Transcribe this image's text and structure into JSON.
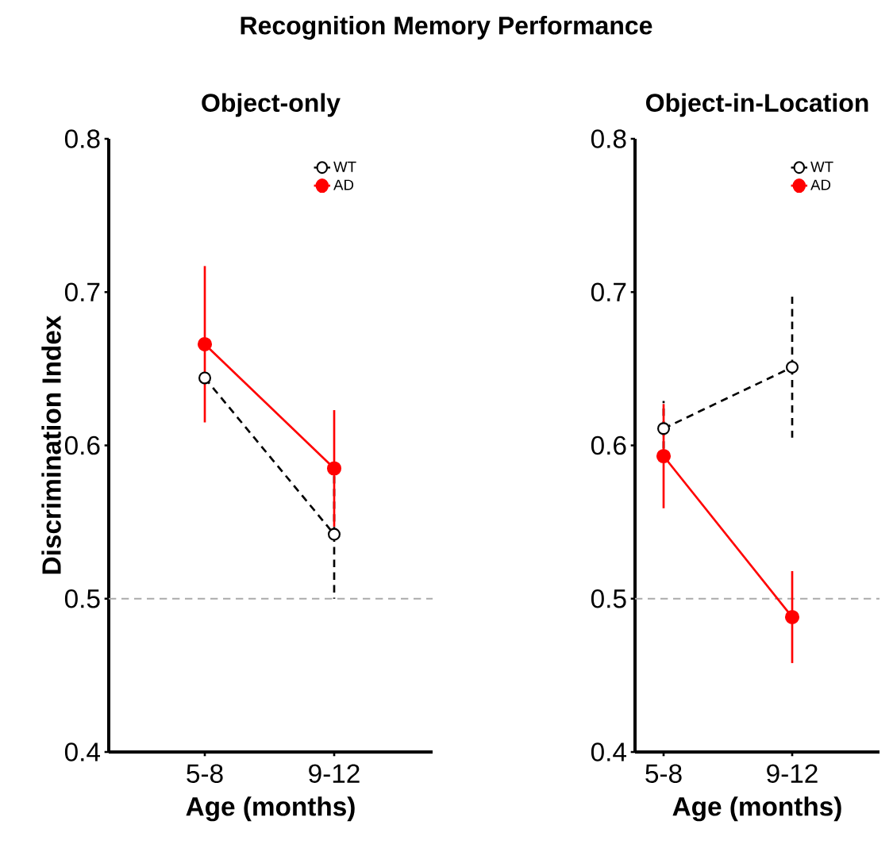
{
  "chart_data": [
    {
      "type": "line",
      "title": "Object-only",
      "xlabel": "Age (months)",
      "ylabel": "Discrimination Index",
      "annotations": [
        "Recognition Memory Performance"
      ],
      "categories": [
        "5-8",
        "9-12"
      ],
      "ylim": [
        0.4,
        0.8
      ],
      "yticks": [
        0.4,
        0.5,
        0.6,
        0.7,
        0.8
      ],
      "grid": false,
      "legend": "top right",
      "marker": "circle",
      "ref_lines": [
        {
          "axis": "y",
          "value": 0.5,
          "color": "#aaaaaa",
          "line_style": "dashed"
        }
      ],
      "series": [
        {
          "name": "WT",
          "color": "#000000",
          "line_style": "dashed",
          "values": [
            0.644,
            0.542
          ],
          "errors": [
            null,
            0.042
          ]
        },
        {
          "name": "AD",
          "color": "#ff0000",
          "line_style": "solid",
          "values": [
            0.666,
            0.585
          ],
          "errors": [
            0.051,
            0.038
          ]
        }
      ]
    },
    {
      "type": "line",
      "title": "Object-in-Location",
      "xlabel": "Age (months)",
      "categories": [
        "5-8",
        "9-12"
      ],
      "ylim": [
        0.4,
        0.8
      ],
      "yticks": [
        0.4,
        0.5,
        0.6,
        0.7,
        0.8
      ],
      "grid": false,
      "legend": "top right",
      "marker": "circle",
      "ref_lines": [
        {
          "axis": "y",
          "value": 0.5,
          "color": "#aaaaaa",
          "line_style": "dashed"
        }
      ],
      "series": [
        {
          "name": "WT",
          "color": "#000000",
          "line_style": "dashed",
          "values": [
            0.611,
            0.651
          ],
          "errors": [
            0.018,
            0.046
          ]
        },
        {
          "name": "AD",
          "color": "#ff0000",
          "line_style": "solid",
          "values": [
            0.593,
            0.488
          ],
          "errors": [
            0.034,
            0.03
          ]
        }
      ]
    }
  ]
}
